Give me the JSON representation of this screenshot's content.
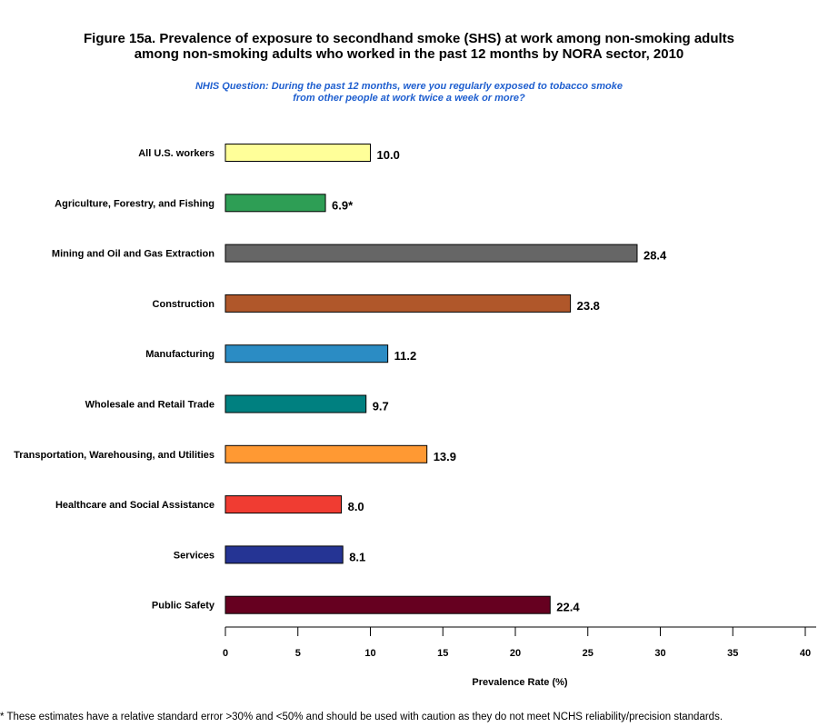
{
  "chart_data": {
    "type": "bar",
    "orientation": "horizontal",
    "title_lines": [
      "Figure 15a. Prevalence of exposure to secondhand smoke (SHS) at work among non-smoking adults",
      "among non-smoking adults who worked in the past 12 months by NORA sector, 2010"
    ],
    "subtitle_lines": [
      "NHIS Question: During the past 12 months, were you regularly exposed to tobacco smoke",
      "from other people at work twice a week or more?"
    ],
    "categories": [
      "All U.S. workers",
      "Agriculture, Forestry, and Fishing",
      "Mining and Oil and Gas Extraction",
      "Construction",
      "Manufacturing",
      "Wholesale and Retail Trade",
      "Transportation, Warehousing, and Utilities",
      "Healthcare and Social Assistance",
      "Services",
      "Public Safety"
    ],
    "values": [
      10.0,
      6.9,
      28.4,
      23.8,
      11.2,
      9.7,
      13.9,
      8.0,
      8.1,
      22.4
    ],
    "data_labels": [
      "10.0",
      "6.9*",
      "28.4",
      "23.8",
      "11.2",
      "9.7",
      "13.9",
      "8.0",
      "8.1",
      "22.4"
    ],
    "colors": [
      "#ffff99",
      "#2e9e55",
      "#666666",
      "#b0572a",
      "#2b8cc4",
      "#008080",
      "#ff9933",
      "#f03c32",
      "#253494",
      "#660020"
    ],
    "xlabel": "Prevalence Rate (%)",
    "xlim": [
      0,
      40
    ],
    "xticks": [
      0,
      5,
      10,
      15,
      20,
      25,
      30,
      35,
      40
    ],
    "grid": false,
    "footnote": "* These estimates have a relative standard error >30% and <50% and should be used with caution as they do not meet NCHS reliability/precision standards."
  }
}
